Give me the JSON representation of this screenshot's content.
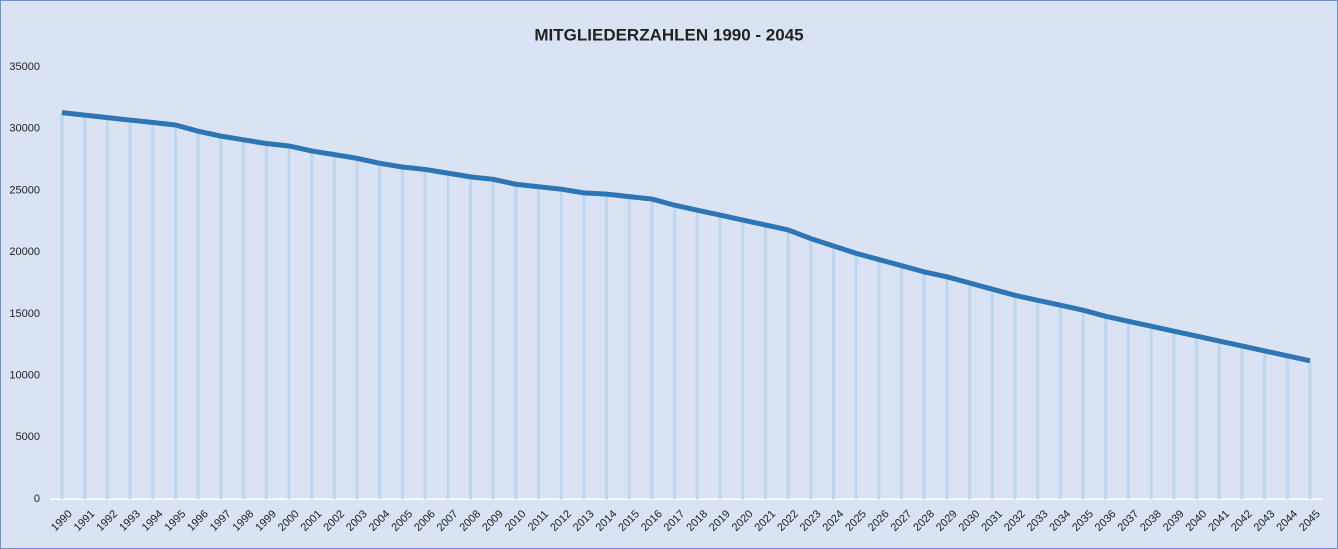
{
  "chart_data": {
    "type": "line",
    "title": "MITGLIEDERZAHLEN 1990 - 2045",
    "categories": [
      "1990",
      "1991",
      "1992",
      "1993",
      "1994",
      "1995",
      "1996",
      "1997",
      "1998",
      "1999",
      "2000",
      "2001",
      "2002",
      "2003",
      "2004",
      "2005",
      "2006",
      "2007",
      "2008",
      "2009",
      "2010",
      "2011",
      "2012",
      "2013",
      "2014",
      "2015",
      "2016",
      "2017",
      "2018",
      "2019",
      "2020",
      "2021",
      "2022",
      "2023",
      "2024",
      "2025",
      "2026",
      "2027",
      "2028",
      "2029",
      "2030",
      "2031",
      "2032",
      "2033",
      "2034",
      "2035",
      "2036",
      "2037",
      "2038",
      "2039",
      "2040",
      "2041",
      "2042",
      "2043",
      "2044",
      "2045"
    ],
    "values": [
      31300,
      31100,
      30900,
      30700,
      30500,
      30300,
      29800,
      29400,
      29100,
      28800,
      28600,
      28200,
      27900,
      27600,
      27200,
      26900,
      26700,
      26400,
      26100,
      25900,
      25500,
      25300,
      25100,
      24800,
      24700,
      24500,
      24300,
      23800,
      23400,
      23000,
      22600,
      22200,
      21800,
      21100,
      20500,
      19900,
      19400,
      18900,
      18400,
      18000,
      17500,
      17000,
      16500,
      16100,
      15700,
      15300,
      14800,
      14400,
      14000,
      13600,
      13200,
      12800,
      12400,
      12000,
      11600,
      11200
    ],
    "color": "#2e75b6",
    "drop_line_color": "#bdd7ee",
    "ylim": [
      0,
      35000
    ],
    "yticks": [
      0,
      5000,
      10000,
      15000,
      20000,
      25000,
      30000,
      35000
    ],
    "grid": false
  }
}
